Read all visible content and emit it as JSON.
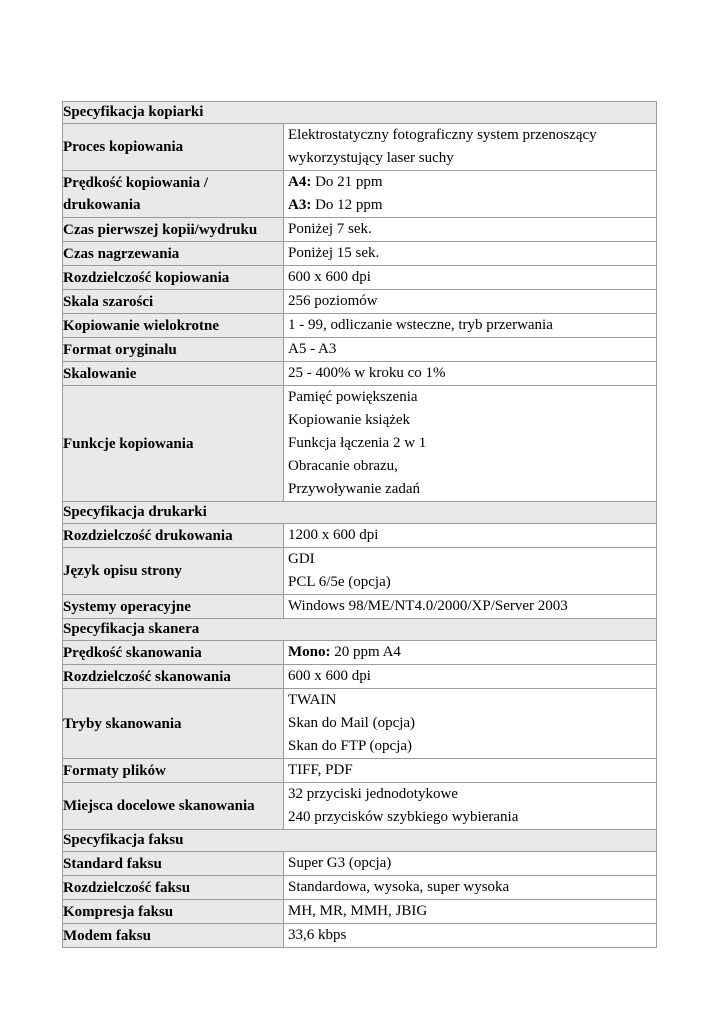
{
  "table": {
    "colors": {
      "cell_bg": "#e9e9e9",
      "border": "#9c9c9c",
      "value_bg": "#ffffff",
      "text": "#000000"
    },
    "rows": [
      {
        "type": "section",
        "label": "Specyfikacja kopiarki"
      },
      {
        "type": "spec",
        "label": "Proces kopiowania",
        "lines": [
          {
            "text": "Elektrostatyczny fotograficzny system przenoszący"
          },
          {
            "text": "wykorzystujący laser suchy"
          }
        ]
      },
      {
        "type": "spec",
        "label": "Prędkość kopiowania / drukowania",
        "lines": [
          {
            "bold": "A4:",
            "text": " Do 21 ppm"
          },
          {
            "bold": "A3:",
            "text": " Do 12 ppm"
          }
        ]
      },
      {
        "type": "spec",
        "label": "Czas pierwszej kopii/wydruku",
        "lines": [
          {
            "text": "Poniżej 7 sek."
          }
        ]
      },
      {
        "type": "spec",
        "label": "Czas nagrzewania",
        "lines": [
          {
            "text": "Poniżej 15 sek."
          }
        ]
      },
      {
        "type": "spec",
        "label": "Rozdzielczość kopiowania",
        "lines": [
          {
            "text": "600 x 600 dpi"
          }
        ]
      },
      {
        "type": "spec",
        "label": "Skala szarości",
        "lines": [
          {
            "text": "256 poziomów"
          }
        ]
      },
      {
        "type": "spec",
        "label": "Kopiowanie wielokrotne",
        "lines": [
          {
            "text": "1 - 99, odliczanie wsteczne, tryb przerwania"
          }
        ]
      },
      {
        "type": "spec",
        "label": "Format oryginalu",
        "lines": [
          {
            "text": "A5 - A3"
          }
        ]
      },
      {
        "type": "spec",
        "label": "Skalowanie",
        "lines": [
          {
            "text": "25 - 400% w kroku co 1%"
          }
        ]
      },
      {
        "type": "spec",
        "label": "Funkcje kopiowania",
        "lines": [
          {
            "text": "Pamięć powiększenia"
          },
          {
            "text": "Kopiowanie książek"
          },
          {
            "text": "Funkcja łączenia 2 w 1"
          },
          {
            "text": "Obracanie obrazu,"
          },
          {
            "text": "Przywoływanie zadań"
          }
        ]
      },
      {
        "type": "section",
        "label": "Specyfikacja drukarki"
      },
      {
        "type": "spec",
        "label": "Rozdzielczość drukowania",
        "lines": [
          {
            "text": "1200 x 600 dpi"
          }
        ]
      },
      {
        "type": "spec",
        "label": "Język opisu strony",
        "lines": [
          {
            "text": "GDI"
          },
          {
            "text": "PCL 6/5e (opcja)"
          }
        ]
      },
      {
        "type": "spec",
        "label": "Systemy operacyjne",
        "lines": [
          {
            "text": "Windows 98/ME/NT4.0/2000/XP/Server 2003"
          }
        ]
      },
      {
        "type": "section",
        "label": "Specyfikacja skanera"
      },
      {
        "type": "spec",
        "label": "Prędkość skanowania",
        "lines": [
          {
            "bold": "Mono:",
            "text": " 20 ppm A4"
          }
        ]
      },
      {
        "type": "spec",
        "label": "Rozdzielczość skanowania",
        "lines": [
          {
            "text": "600 x 600 dpi"
          }
        ]
      },
      {
        "type": "spec",
        "label": "Tryby skanowania",
        "lines": [
          {
            "text": "TWAIN"
          },
          {
            "text": "Skan do Mail (opcja)"
          },
          {
            "text": "Skan do FTP (opcja)"
          }
        ]
      },
      {
        "type": "spec",
        "label": "Formaty plików",
        "lines": [
          {
            "text": "TIFF, PDF"
          }
        ]
      },
      {
        "type": "spec",
        "label": "Miejsca docelowe skanowania",
        "lines": [
          {
            "text": "32 przyciski jednodotykowe"
          },
          {
            "text": "240 przycisków szybkiego wybierania"
          }
        ]
      },
      {
        "type": "section",
        "label": "Specyfikacja faksu"
      },
      {
        "type": "spec",
        "label": "Standard faksu",
        "lines": [
          {
            "text": "Super G3 (opcja)"
          }
        ]
      },
      {
        "type": "spec",
        "label": "Rozdzielczość faksu",
        "lines": [
          {
            "text": "Standardowa, wysoka, super wysoka"
          }
        ]
      },
      {
        "type": "spec",
        "label": "Kompresja faksu",
        "lines": [
          {
            "text": "MH, MR, MMH, JBIG"
          }
        ]
      },
      {
        "type": "spec",
        "label": "Modem faksu",
        "lines": [
          {
            "text": "33,6 kbps"
          }
        ]
      }
    ]
  }
}
